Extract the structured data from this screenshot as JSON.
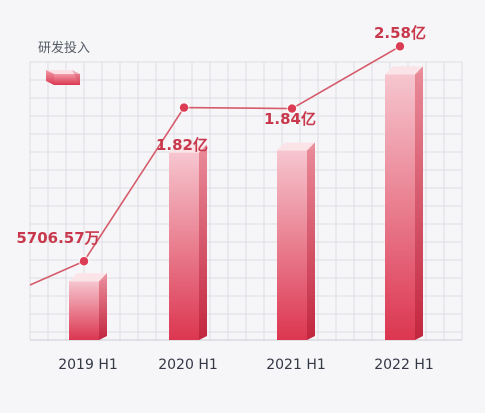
{
  "chart_data": {
    "type": "bar",
    "categories": [
      "2019 H1",
      "2020 H1",
      "2021 H1",
      "2022 H1"
    ],
    "values": [
      5706.57,
      18200,
      18400,
      25800
    ],
    "unit": "万元",
    "data_labels": [
      "5706.57万",
      "1.82亿",
      "1.84亿",
      "2.58亿"
    ],
    "series": [
      {
        "name": "研发投入",
        "values": [
          5706.57,
          18200,
          18400,
          25800
        ]
      }
    ],
    "overlay_line": true,
    "legend_position": "top-left",
    "grid": true,
    "ylim": [
      0,
      27000
    ],
    "colors": {
      "bar_top": "#f6c6cf",
      "bar_bottom": "#dc3650",
      "bar_side_top": "#e98a99",
      "bar_side_bottom": "#c2263e",
      "bar_cap": "#fbe4e8",
      "line": "#d55a6a",
      "marker": "#db3d55",
      "label": "#c8384c",
      "grid": "#d9dbe1",
      "background": "#f6f6f8"
    }
  }
}
